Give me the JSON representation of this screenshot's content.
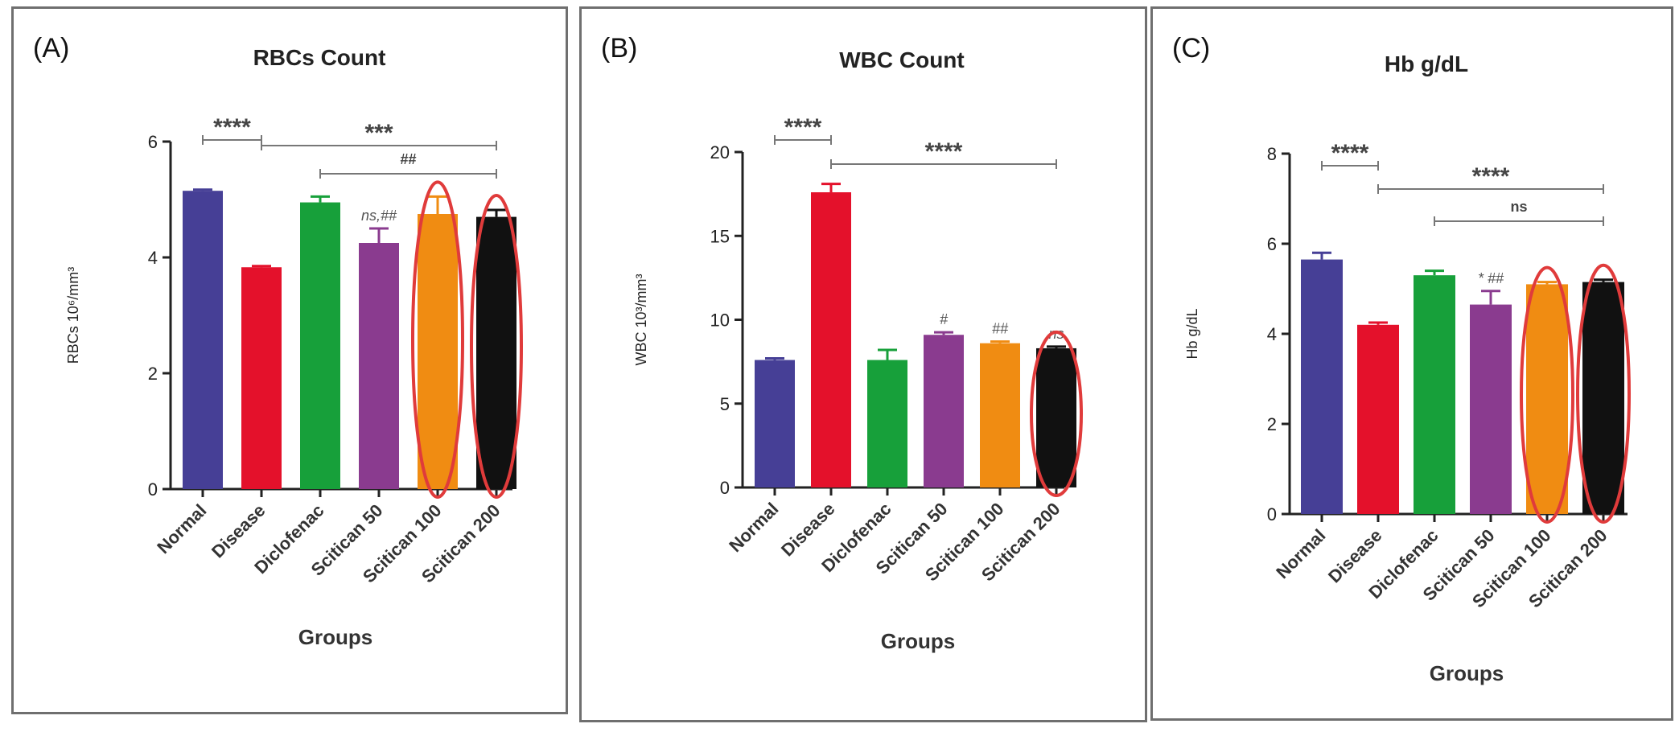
{
  "chart_data": [
    {
      "type": "bar",
      "panel_label": "(A)",
      "title": "RBCs Count",
      "xlabel": "Groups",
      "ylabel": "RBCs 10⁶/mm³",
      "ylim": [
        0,
        6
      ],
      "yticks": [
        "0",
        "2",
        "4",
        "6"
      ],
      "categories": [
        "Normal",
        "Disease",
        "Diclofenac",
        "Scitican 50",
        "Scitican 100",
        "Scitican 200"
      ],
      "values": [
        5.15,
        3.83,
        4.95,
        4.25,
        4.75,
        4.7
      ],
      "errors": [
        0.02,
        0.02,
        0.1,
        0.25,
        0.3,
        0.12
      ],
      "colors": [
        "#463f96",
        "#e4112b",
        "#17a03a",
        "#8a3b8f",
        "#f08c12",
        "#111111"
      ],
      "highlighted": [
        "Scitican 100",
        "Scitican 200"
      ],
      "bar_labels": [
        "",
        "",
        "",
        "ns,##",
        "",
        ""
      ],
      "comparisons": [
        {
          "from": "Normal",
          "to": "Disease",
          "label": "****"
        },
        {
          "from": "Disease",
          "to": "Scitican 200",
          "label": "***"
        },
        {
          "from": "Diclofenac",
          "to": "Scitican 200",
          "label": "##"
        }
      ],
      "grid": false
    },
    {
      "type": "bar",
      "panel_label": "(B)",
      "title": "WBC Count",
      "xlabel": "Groups",
      "ylabel": "WBC 10³/mm³",
      "ylim": [
        0,
        20
      ],
      "yticks": [
        "0",
        "5",
        "10",
        "15",
        "20"
      ],
      "categories": [
        "Normal",
        "Disease",
        "Diclofenac",
        "Scitican 50",
        "Scitican 100",
        "Scitican 200"
      ],
      "values": [
        7.6,
        17.6,
        7.6,
        9.1,
        8.6,
        8.3
      ],
      "errors": [
        0.1,
        0.5,
        0.6,
        0.15,
        0.1,
        0.1
      ],
      "colors": [
        "#463f96",
        "#e4112b",
        "#17a03a",
        "#8a3b8f",
        "#f08c12",
        "#111111"
      ],
      "highlighted": [
        "Scitican 200"
      ],
      "bar_labels": [
        "",
        "",
        "",
        "#",
        "##",
        "ns"
      ],
      "comparisons": [
        {
          "from": "Normal",
          "to": "Disease",
          "label": "****"
        },
        {
          "from": "Disease",
          "to": "Scitican 200",
          "label": "****"
        }
      ],
      "grid": false
    },
    {
      "type": "bar",
      "panel_label": "(C)",
      "title": "Hb g/dL",
      "xlabel": "Groups",
      "ylabel": "Hb g/dL",
      "ylim": [
        0,
        8
      ],
      "yticks": [
        "0",
        "2",
        "4",
        "6",
        "8"
      ],
      "categories": [
        "Normal",
        "Disease",
        "Diclofenac",
        "Scitican 50",
        "Scitican 100",
        "Scitican 200"
      ],
      "values": [
        5.65,
        4.2,
        5.3,
        4.65,
        5.1,
        5.15
      ],
      "errors": [
        0.15,
        0.05,
        0.1,
        0.3,
        0.05,
        0.05
      ],
      "colors": [
        "#463f96",
        "#e4112b",
        "#17a03a",
        "#8a3b8f",
        "#f08c12",
        "#111111"
      ],
      "highlighted": [
        "Scitican 100",
        "Scitican 200"
      ],
      "bar_labels": [
        "",
        "",
        "",
        "* ##",
        "",
        ""
      ],
      "comparisons": [
        {
          "from": "Normal",
          "to": "Disease",
          "label": "****"
        },
        {
          "from": "Disease",
          "to": "Scitican 200",
          "label": "****"
        },
        {
          "from": "Diclofenac",
          "to": "Scitican 200",
          "label": "ns"
        }
      ],
      "grid": false
    }
  ]
}
